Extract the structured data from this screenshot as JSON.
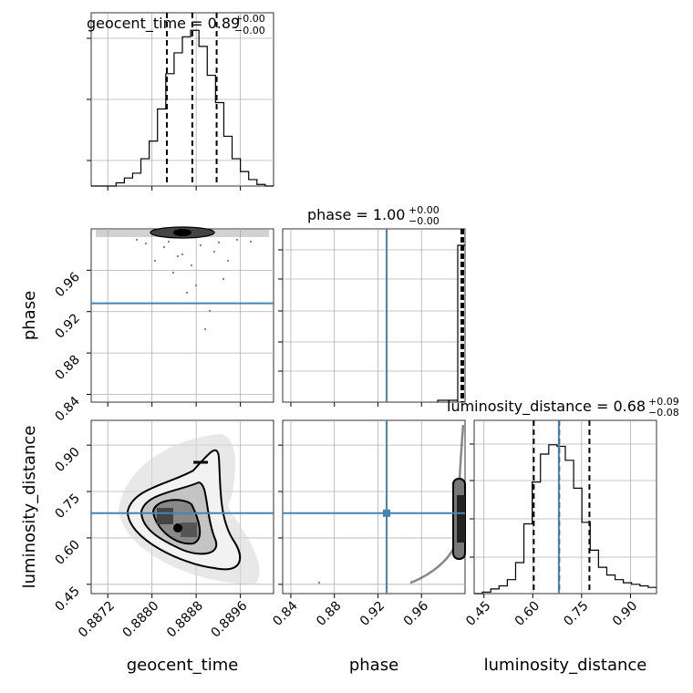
{
  "chart_data": {
    "type": "corner",
    "parameters": [
      "geocent_time",
      "phase",
      "luminosity_distance"
    ],
    "truth": {
      "geocent_time": null,
      "phase": 0.928,
      "luminosity_distance": 0.68
    },
    "truth_color": "#4682b4",
    "line_color": "#000000",
    "grid": true,
    "panels": {
      "geocent_time": {
        "title": "geocent_time = 0.89",
        "title_sup": "+0.00",
        "title_sub": "−0.00",
        "xlabel": "geocent_time",
        "xticks": [
          "0.8872",
          "0.8880",
          "0.8888",
          "0.8896"
        ],
        "tick_values": [
          0.8872,
          0.888,
          0.8888,
          0.8896
        ],
        "xlim": [
          0.8869,
          0.8902
        ],
        "quantiles": [
          0.88827,
          0.88873,
          0.88917
        ],
        "hist_edges": [
          0.8869,
          0.89023
        ],
        "hist_counts": [
          0.0,
          0.0,
          0.0,
          0.02,
          0.05,
          0.08,
          0.17,
          0.28,
          0.48,
          0.7,
          0.83,
          0.93,
          0.97,
          0.87,
          0.69,
          0.52,
          0.31,
          0.17,
          0.09,
          0.04,
          0.01,
          0.0
        ]
      },
      "phase": {
        "title": "phase = 1.00",
        "title_sup": "+0.00",
        "title_sub": "−0.00",
        "ylabel": "phase",
        "xlabel": "phase",
        "ticks": [
          "0.84",
          "0.88",
          "0.92",
          "0.96"
        ],
        "tick_values": [
          0.84,
          0.88,
          0.92,
          0.96
        ],
        "lim": [
          0.8325,
          1.0
        ],
        "quantiles": [
          0.999,
          0.9995,
          0.99995
        ],
        "hist_edges": [
          0.8325,
          1.0
        ],
        "hist_counts": [
          0,
          0,
          0,
          0,
          0,
          0,
          0,
          0,
          0,
          0,
          0,
          0,
          0,
          0,
          0,
          0,
          0,
          0,
          0,
          0,
          0.0,
          0.0,
          0.01,
          0.02,
          0.05,
          0.9
        ]
      },
      "luminosity_distance": {
        "title": "luminosity_distance = 0.68",
        "title_sup": "+0.09",
        "title_sub": "−0.08",
        "ylabel": "luminosity_distance",
        "xlabel": "luminosity_distance",
        "ticks": [
          "0.45",
          "0.60",
          "0.75",
          "0.90"
        ],
        "tick_values": [
          0.45,
          0.6,
          0.75,
          0.9
        ],
        "lim": [
          0.42,
          0.98
        ],
        "quantiles": [
          0.603,
          0.681,
          0.774
        ],
        "hist_edges": [
          0.42,
          0.98
        ],
        "hist_counts": [
          0.0,
          0.01,
          0.03,
          0.05,
          0.09,
          0.2,
          0.45,
          0.72,
          0.9,
          0.96,
          0.95,
          0.86,
          0.68,
          0.46,
          0.28,
          0.17,
          0.12,
          0.09,
          0.07,
          0.06,
          0.05,
          0.04
        ]
      }
    }
  }
}
